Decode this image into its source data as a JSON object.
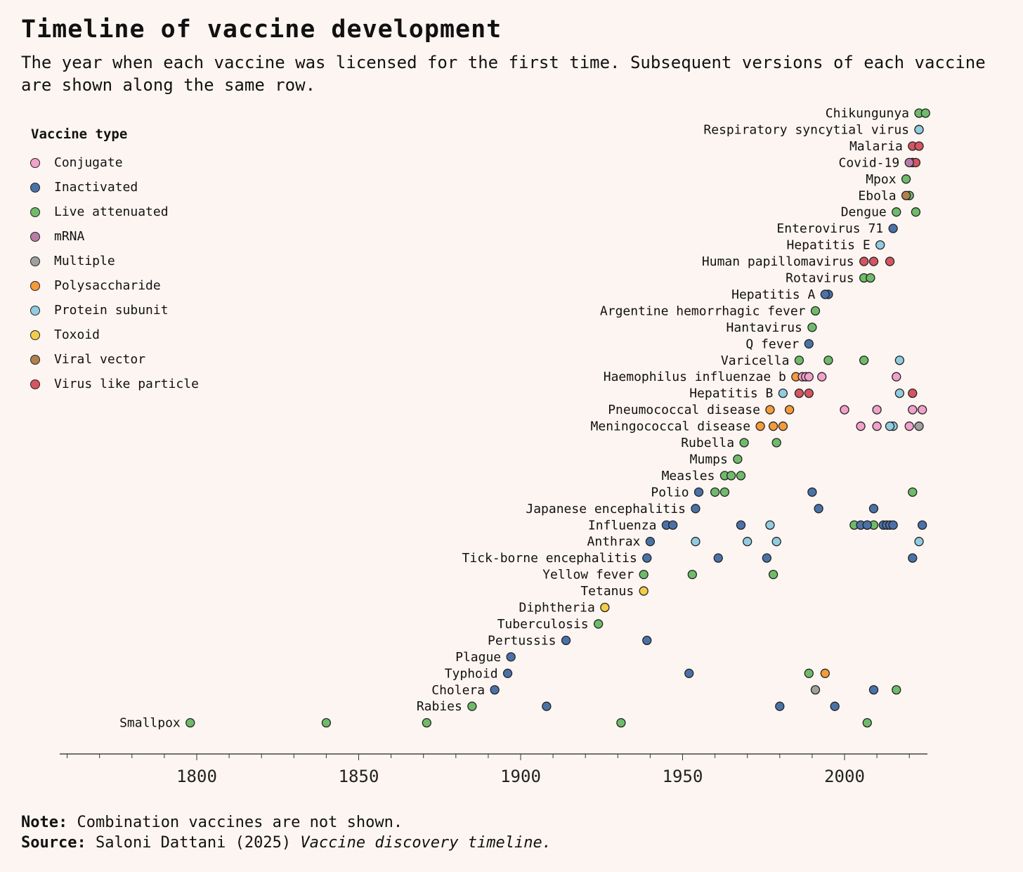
{
  "footer": {
    "note_label": "Note:",
    "note_text": "Combination vaccines are not shown.",
    "source_label": "Source:",
    "source_text": "Saloni Dattani (2025) ",
    "source_title": "Vaccine discovery timeline."
  },
  "chart_data": {
    "type": "scatter",
    "title": "Timeline of vaccine development",
    "subtitle": "The year when each vaccine was licensed for the first time. Subsequent versions of each vaccine are shown along the same row.",
    "legend_title": "Vaccine type",
    "legend_placement": "top-left",
    "xlabel": "",
    "ylabel": "",
    "xlim": [
      1757,
      2025
    ],
    "xticks": [
      1800,
      1850,
      1900,
      1950,
      2000
    ],
    "minor_tick_step": 10,
    "grid": false,
    "types": [
      {
        "name": "Conjugate",
        "color": "#f2a0cc"
      },
      {
        "name": "Inactivated",
        "color": "#4a72a8"
      },
      {
        "name": "Live attenuated",
        "color": "#6fbb6a"
      },
      {
        "name": "mRNA",
        "color": "#b97ba8"
      },
      {
        "name": "Multiple",
        "color": "#a0a0a0"
      },
      {
        "name": "Polysaccharide",
        "color": "#f59b3a"
      },
      {
        "name": "Protein subunit",
        "color": "#92cce0"
      },
      {
        "name": "Toxoid",
        "color": "#f2cd4a"
      },
      {
        "name": "Viral vector",
        "color": "#b0804f"
      },
      {
        "name": "Virus like particle",
        "color": "#d65562"
      }
    ],
    "series": [
      {
        "name": "Chikungunya",
        "points": [
          [
            2023,
            "Live attenuated"
          ],
          [
            2025,
            "Live attenuated"
          ]
        ]
      },
      {
        "name": "Respiratory syncytial virus",
        "points": [
          [
            2023,
            "Conjugate"
          ],
          [
            2023,
            "Protein subunit"
          ]
        ]
      },
      {
        "name": "Malaria",
        "points": [
          [
            2021,
            "Virus like particle"
          ],
          [
            2023,
            "Virus like particle"
          ]
        ]
      },
      {
        "name": "Covid-19",
        "points": [
          [
            2021,
            "Viral vector"
          ],
          [
            2021,
            "Protein subunit"
          ],
          [
            2022,
            "Virus like particle"
          ],
          [
            2020,
            "mRNA"
          ]
        ]
      },
      {
        "name": "Mpox",
        "points": [
          [
            2019,
            "Live attenuated"
          ]
        ]
      },
      {
        "name": "Ebola",
        "points": [
          [
            2020,
            "Live attenuated"
          ],
          [
            2019,
            "Viral vector"
          ]
        ]
      },
      {
        "name": "Dengue",
        "points": [
          [
            2016,
            "Live attenuated"
          ],
          [
            2022,
            "Live attenuated"
          ]
        ]
      },
      {
        "name": "Enterovirus 71",
        "points": [
          [
            2015,
            "Inactivated"
          ]
        ]
      },
      {
        "name": "Hepatitis E",
        "points": [
          [
            2011,
            "Protein subunit"
          ]
        ]
      },
      {
        "name": "Human papillomavirus",
        "points": [
          [
            2006,
            "Virus like particle"
          ],
          [
            2009,
            "Virus like particle"
          ],
          [
            2014,
            "Virus like particle"
          ]
        ]
      },
      {
        "name": "Rotavirus",
        "points": [
          [
            2006,
            "Live attenuated"
          ],
          [
            2008,
            "Live attenuated"
          ]
        ]
      },
      {
        "name": "Hepatitis A",
        "points": [
          [
            1995,
            "Inactivated"
          ],
          [
            1994,
            "Inactivated"
          ]
        ]
      },
      {
        "name": "Argentine hemorrhagic fever",
        "points": [
          [
            1991,
            "Live attenuated"
          ]
        ]
      },
      {
        "name": "Hantavirus",
        "points": [
          [
            1990,
            "Live attenuated"
          ]
        ]
      },
      {
        "name": "Q fever",
        "points": [
          [
            1989,
            "Inactivated"
          ]
        ]
      },
      {
        "name": "Varicella",
        "points": [
          [
            1986,
            "Live attenuated"
          ],
          [
            1995,
            "Live attenuated"
          ],
          [
            2006,
            "Live attenuated"
          ],
          [
            2017,
            "Protein subunit"
          ]
        ]
      },
      {
        "name": "Haemophilus influenzae b",
        "points": [
          [
            1985,
            "Polysaccharide"
          ],
          [
            1987,
            "Conjugate"
          ],
          [
            1988,
            "Conjugate"
          ],
          [
            1989,
            "Conjugate"
          ],
          [
            1993,
            "Conjugate"
          ],
          [
            2016,
            "Conjugate"
          ]
        ]
      },
      {
        "name": "Hepatitis B",
        "points": [
          [
            1981,
            "Protein subunit"
          ],
          [
            1986,
            "Virus like particle"
          ],
          [
            1989,
            "Virus like particle"
          ],
          [
            2017,
            "Protein subunit"
          ],
          [
            2021,
            "Virus like particle"
          ]
        ]
      },
      {
        "name": "Pneumococcal disease",
        "points": [
          [
            1977,
            "Polysaccharide"
          ],
          [
            1983,
            "Polysaccharide"
          ],
          [
            2000,
            "Conjugate"
          ],
          [
            2010,
            "Conjugate"
          ],
          [
            2021,
            "Conjugate"
          ],
          [
            2024,
            "Conjugate"
          ]
        ]
      },
      {
        "name": "Meningococcal disease",
        "points": [
          [
            1974,
            "Polysaccharide"
          ],
          [
            1978,
            "Polysaccharide"
          ],
          [
            1981,
            "Polysaccharide"
          ],
          [
            2005,
            "Conjugate"
          ],
          [
            2010,
            "Conjugate"
          ],
          [
            2015,
            "Protein subunit"
          ],
          [
            2014,
            "Protein subunit"
          ],
          [
            2020,
            "Conjugate"
          ],
          [
            2023,
            "Multiple"
          ]
        ]
      },
      {
        "name": "Rubella",
        "points": [
          [
            1969,
            "Live attenuated"
          ],
          [
            1979,
            "Live attenuated"
          ]
        ]
      },
      {
        "name": "Mumps",
        "points": [
          [
            1967,
            "Live attenuated"
          ]
        ]
      },
      {
        "name": "Measles",
        "points": [
          [
            1963,
            "Live attenuated"
          ],
          [
            1965,
            "Live attenuated"
          ],
          [
            1968,
            "Live attenuated"
          ]
        ]
      },
      {
        "name": "Polio",
        "points": [
          [
            1955,
            "Inactivated"
          ],
          [
            1960,
            "Live attenuated"
          ],
          [
            1963,
            "Live attenuated"
          ],
          [
            1990,
            "Inactivated"
          ],
          [
            2021,
            "Live attenuated"
          ]
        ]
      },
      {
        "name": "Japanese encephalitis",
        "points": [
          [
            1954,
            "Inactivated"
          ],
          [
            1992,
            "Inactivated"
          ],
          [
            2009,
            "Inactivated"
          ]
        ]
      },
      {
        "name": "Influenza",
        "points": [
          [
            1945,
            "Inactivated"
          ],
          [
            1947,
            "Inactivated"
          ],
          [
            1968,
            "Inactivated"
          ],
          [
            1977,
            "Protein subunit"
          ],
          [
            2003,
            "Live attenuated"
          ],
          [
            2007,
            "Live attenuated"
          ],
          [
            2005,
            "Inactivated"
          ],
          [
            2009,
            "Live attenuated"
          ],
          [
            2007,
            "Inactivated"
          ],
          [
            2012,
            "Inactivated"
          ],
          [
            2013,
            "Inactivated"
          ],
          [
            2014,
            "Inactivated"
          ],
          [
            2015,
            "Inactivated"
          ],
          [
            2024,
            "Inactivated"
          ]
        ]
      },
      {
        "name": "Anthrax",
        "points": [
          [
            1940,
            "Inactivated"
          ],
          [
            1954,
            "Protein subunit"
          ],
          [
            1970,
            "Protein subunit"
          ],
          [
            1979,
            "Protein subunit"
          ],
          [
            2023,
            "Protein subunit"
          ]
        ]
      },
      {
        "name": "Tick-borne encephalitis",
        "points": [
          [
            1939,
            "Inactivated"
          ],
          [
            1961,
            "Inactivated"
          ],
          [
            1976,
            "Inactivated"
          ],
          [
            2021,
            "Inactivated"
          ]
        ]
      },
      {
        "name": "Yellow fever",
        "points": [
          [
            1938,
            "Live attenuated"
          ],
          [
            1953,
            "Live attenuated"
          ],
          [
            1978,
            "Live attenuated"
          ]
        ]
      },
      {
        "name": "Tetanus",
        "points": [
          [
            1938,
            "Toxoid"
          ]
        ]
      },
      {
        "name": "Diphtheria",
        "points": [
          [
            1926,
            "Toxoid"
          ]
        ]
      },
      {
        "name": "Tuberculosis",
        "points": [
          [
            1924,
            "Live attenuated"
          ]
        ]
      },
      {
        "name": "Pertussis",
        "points": [
          [
            1914,
            "Inactivated"
          ],
          [
            1939,
            "Inactivated"
          ]
        ]
      },
      {
        "name": "Plague",
        "points": [
          [
            1897,
            "Inactivated"
          ]
        ]
      },
      {
        "name": "Typhoid",
        "points": [
          [
            1896,
            "Inactivated"
          ],
          [
            1952,
            "Inactivated"
          ],
          [
            1989,
            "Live attenuated"
          ],
          [
            1994,
            "Polysaccharide"
          ]
        ]
      },
      {
        "name": "Cholera",
        "points": [
          [
            1892,
            "Inactivated"
          ],
          [
            1991,
            "Multiple"
          ],
          [
            2009,
            "Inactivated"
          ],
          [
            2016,
            "Live attenuated"
          ]
        ]
      },
      {
        "name": "Rabies",
        "points": [
          [
            1885,
            "Live attenuated"
          ],
          [
            1908,
            "Inactivated"
          ],
          [
            1980,
            "Inactivated"
          ],
          [
            1997,
            "Inactivated"
          ]
        ]
      },
      {
        "name": "Smallpox",
        "points": [
          [
            1798,
            "Live attenuated"
          ],
          [
            1840,
            "Live attenuated"
          ],
          [
            1871,
            "Live attenuated"
          ],
          [
            1931,
            "Live attenuated"
          ],
          [
            2007,
            "Live attenuated"
          ]
        ]
      }
    ]
  }
}
